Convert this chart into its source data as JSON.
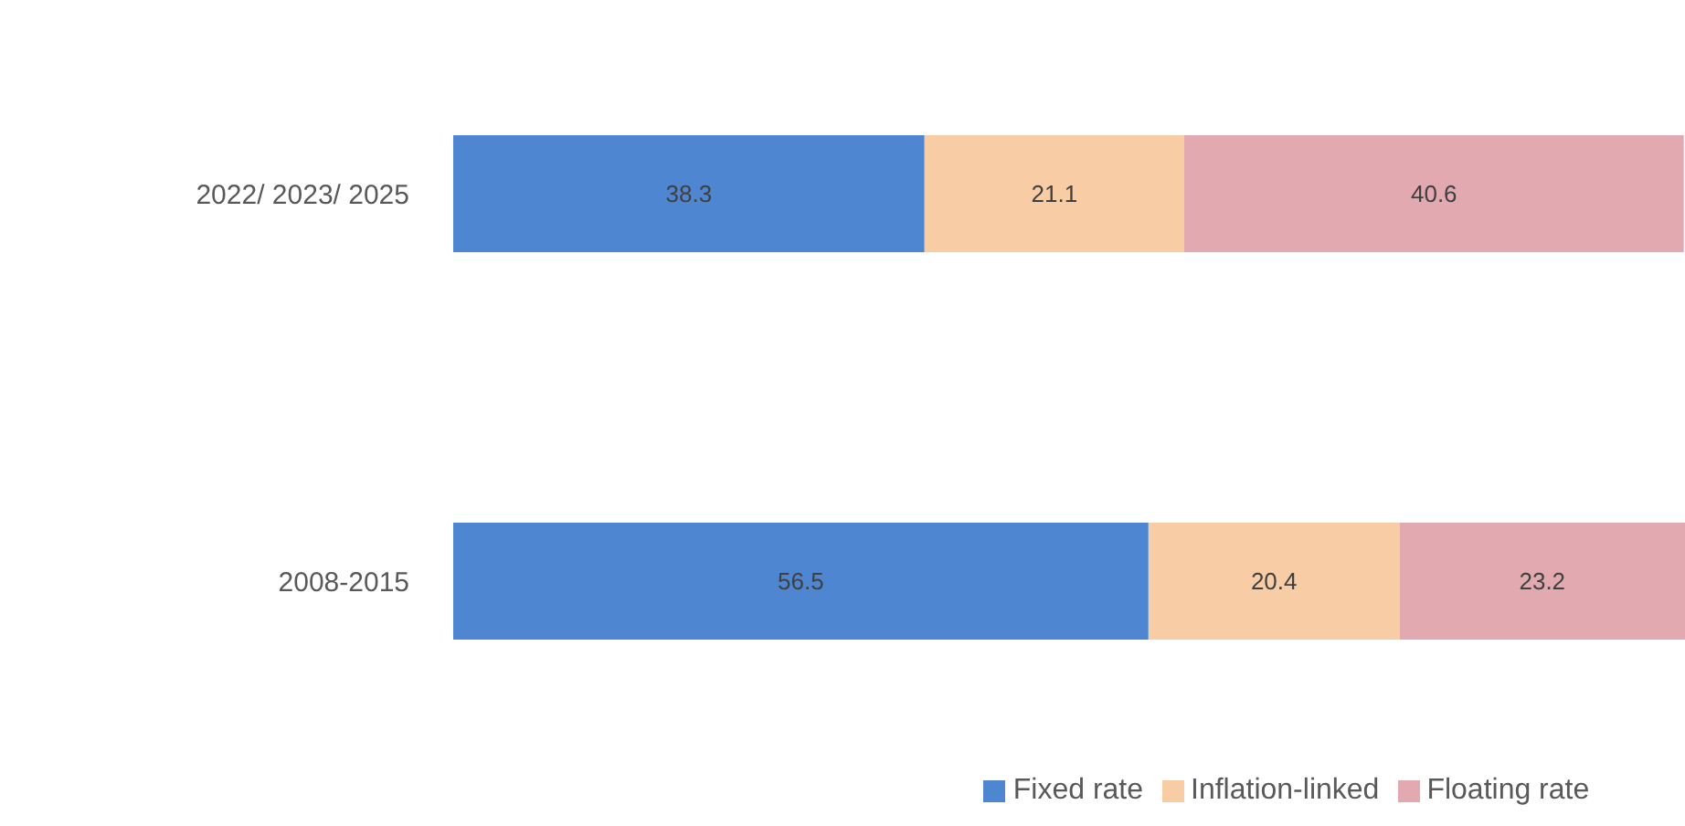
{
  "chart_data": {
    "type": "bar",
    "orientation": "horizontal",
    "stacked": true,
    "categories": [
      "2022/ 2023/ 2025",
      "2008-2015"
    ],
    "series": [
      {
        "name": "Fixed rate",
        "color": "#4e86d2",
        "values": [
          38.3,
          56.5
        ]
      },
      {
        "name": "Inflation-linked",
        "color": "#f8cda5",
        "values": [
          21.1,
          20.4
        ]
      },
      {
        "name": "Floating rate",
        "color": "#e2aab0",
        "values": [
          40.6,
          23.2
        ]
      }
    ],
    "data_labels": true,
    "legend": "bottom",
    "tick_labels": "y"
  }
}
